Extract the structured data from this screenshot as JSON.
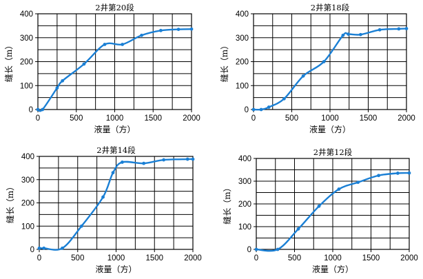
{
  "chart_data": [
    {
      "type": "line",
      "title": "2井第20段",
      "xlabel": "液量（方）",
      "ylabel": "缝长（m）",
      "xlim": [
        0,
        2000
      ],
      "ylim": [
        0,
        400
      ],
      "xticks": [
        "0",
        "500",
        "1000",
        "1500",
        "2000"
      ],
      "yticks": [
        "0",
        "100",
        "200",
        "300",
        "400"
      ],
      "grid": true,
      "color": "#1a7fd4",
      "series": [
        {
          "x": [
            0,
            60,
            250,
            320,
            600,
            870,
            1100,
            1350,
            1600,
            1830,
            2000
          ],
          "y": [
            0,
            0,
            90,
            120,
            190,
            272,
            272,
            310,
            330,
            335,
            336
          ]
        }
      ]
    },
    {
      "type": "line",
      "title": "2井第18段",
      "xlabel": "液量（方）",
      "ylabel": "缝长（m）",
      "xlim": [
        0,
        2000
      ],
      "ylim": [
        0,
        400
      ],
      "xticks": [
        "0",
        "500",
        "1000",
        "1500",
        "2000"
      ],
      "yticks": [
        "0",
        "100",
        "200",
        "300",
        "400"
      ],
      "grid": true,
      "color": "#1a7fd4",
      "series": [
        {
          "x": [
            0,
            100,
            200,
            400,
            650,
            920,
            1170,
            1240,
            1400,
            1650,
            1900,
            2000
          ],
          "y": [
            0,
            0,
            10,
            45,
            140,
            200,
            310,
            315,
            313,
            333,
            337,
            338
          ]
        }
      ]
    },
    {
      "type": "line",
      "title": "2井第14段",
      "xlabel": "液量（方）",
      "ylabel": "缝长（m）",
      "xlim": [
        0,
        2000
      ],
      "ylim": [
        0,
        400
      ],
      "xticks": [
        "0",
        "500",
        "1000",
        "1500",
        "2000"
      ],
      "yticks": [
        "0",
        "100",
        "200",
        "300",
        "400"
      ],
      "grid": true,
      "color": "#1a7fd4",
      "series": [
        {
          "x": [
            0,
            60,
            300,
            550,
            830,
            960,
            1080,
            1360,
            1620,
            1930,
            2000
          ],
          "y": [
            5,
            5,
            5,
            100,
            225,
            330,
            375,
            370,
            385,
            388,
            388
          ]
        }
      ]
    },
    {
      "type": "line",
      "title": "2井第12段",
      "xlabel": "液量（方）",
      "ylabel": "缝长（m）",
      "xlim": [
        0,
        2000
      ],
      "ylim": [
        0,
        400
      ],
      "xticks": [
        "0",
        "500",
        "1000",
        "1500",
        "2000"
      ],
      "yticks": [
        "0",
        "100",
        "200",
        "300",
        "400"
      ],
      "grid": true,
      "color": "#1a7fd4",
      "series": [
        {
          "x": [
            0,
            280,
            550,
            820,
            1080,
            1330,
            1600,
            1850,
            2000
          ],
          "y": [
            0,
            0,
            90,
            190,
            265,
            295,
            325,
            335,
            336
          ]
        }
      ]
    }
  ]
}
